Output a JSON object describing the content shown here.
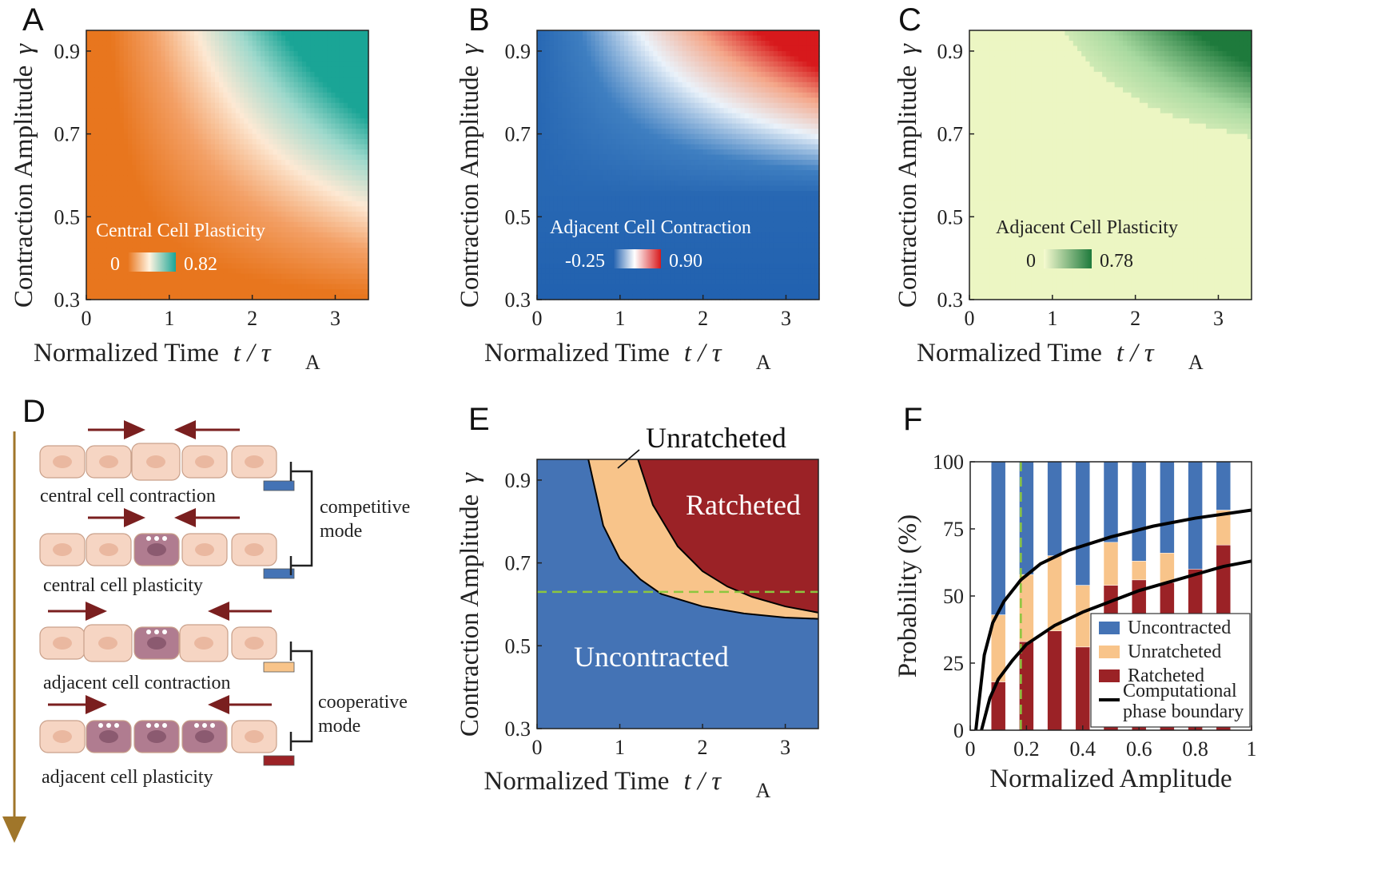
{
  "panel_labels": [
    "A",
    "B",
    "C",
    "D",
    "E",
    "F"
  ],
  "colors": {
    "uncontracted": "#4473b5",
    "unratcheted": "#f8c48a",
    "ratcheted": "#9b2226",
    "boundary": "#000000",
    "dashed_line": "#8cc63f",
    "arrow": "#7a1f1f",
    "cell_fill": "#f6d5c3",
    "cell_plastic": "#b07c90"
  },
  "shared_axes": {
    "xlabel": "Normalized Time",
    "xlabel_symbol": "t / τ",
    "xlabel_sub": "A",
    "ylabel": "Contraction Amplitude",
    "ylabel_symbol": "γ",
    "x_ticks": [
      "0",
      "1",
      "2",
      "3"
    ],
    "y_ticks": [
      "0.3",
      "0.5",
      "0.7",
      "0.9"
    ]
  },
  "panel_d": {
    "captions": [
      "central cell contraction",
      "central cell plasticity",
      "adjacent cell contraction",
      "adjacent cell plasticity"
    ],
    "mode_labels": [
      [
        "competitive",
        "mode"
      ],
      [
        "cooperative",
        "mode"
      ]
    ],
    "row_colors": [
      "#4473b5",
      "#4473b5",
      "#f8c48a",
      "#9b2226"
    ]
  },
  "chart_data": [
    {
      "panel": "A",
      "type": "heatmap",
      "title": "",
      "xlabel": "Normalized Time t / τA",
      "ylabel": "Contraction Amplitude γ",
      "xlim": [
        0,
        3.4
      ],
      "ylim": [
        0.3,
        0.95
      ],
      "inset_label": "Central Cell Plasticity",
      "colorbar": {
        "min": "0",
        "max": "0.82",
        "colors": [
          "#e8761e",
          "#fff3e0",
          "#1aa596"
        ]
      },
      "description_bands": "orange (0) at short times / low amplitude, rising through pale band to teal (0.82) at long times / high amplitude"
    },
    {
      "panel": "B",
      "type": "heatmap",
      "title": "",
      "xlabel": "Normalized Time t / τA",
      "ylabel": "Contraction Amplitude γ",
      "xlim": [
        0,
        3.4
      ],
      "ylim": [
        0.3,
        0.95
      ],
      "inset_label": "Adjacent Cell Contraction",
      "colorbar": {
        "min": "-0.25",
        "max": "0.90",
        "colors": [
          "#1f5fae",
          "#ffffff",
          "#d7191c"
        ]
      }
    },
    {
      "panel": "C",
      "type": "heatmap",
      "title": "",
      "xlabel": "Normalized Time t / τA",
      "ylabel": "Contraction Amplitude γ",
      "xlim": [
        0,
        3.4
      ],
      "ylim": [
        0.3,
        0.95
      ],
      "inset_label": "Adjacent Cell Plasticity",
      "colorbar": {
        "min": "0",
        "max": "0.78",
        "colors": [
          "#f7fbd0",
          "#1e7a3c"
        ]
      }
    },
    {
      "panel": "E",
      "type": "area",
      "title": "",
      "xlabel": "Normalized Time t / τA",
      "ylabel": "Contraction Amplitude γ",
      "xlim": [
        0,
        3.4
      ],
      "ylim": [
        0.3,
        0.95
      ],
      "regions": [
        "Uncontracted",
        "Unratcheted",
        "Ratcheted"
      ],
      "annotation": "Unratcheted",
      "dashed_y": 0.63,
      "boundary_unratcheted": {
        "x": [
          0.62,
          0.8,
          1.0,
          1.25,
          1.5,
          2.0,
          2.5,
          3.0,
          3.4
        ],
        "y": [
          0.95,
          0.79,
          0.71,
          0.66,
          0.625,
          0.595,
          0.578,
          0.568,
          0.565
        ]
      },
      "boundary_ratcheted": {
        "x": [
          1.22,
          1.4,
          1.7,
          2.0,
          2.3,
          2.6,
          3.0,
          3.4
        ],
        "y": [
          0.95,
          0.84,
          0.74,
          0.68,
          0.643,
          0.618,
          0.595,
          0.58
        ]
      }
    },
    {
      "panel": "F",
      "type": "bar",
      "title": "",
      "xlabel": "Normalized Amplitude",
      "ylabel": "Probability (%)",
      "x_ticks": [
        "0",
        "0.2",
        "0.4",
        "0.6",
        "0.8",
        "1"
      ],
      "y_ticks": [
        "0",
        "25",
        "50",
        "75",
        "100"
      ],
      "xlim": [
        0,
        1
      ],
      "ylim": [
        0,
        100
      ],
      "dashed_x": 0.18,
      "x": [
        0.1,
        0.2,
        0.3,
        0.4,
        0.5,
        0.6,
        0.7,
        0.8,
        0.9
      ],
      "series": [
        {
          "name": "Uncontracted",
          "values": [
            57,
            42,
            35,
            46,
            30,
            37,
            34,
            40,
            18
          ]
        },
        {
          "name": "Unratcheted",
          "values": [
            25,
            25,
            28,
            23,
            16,
            7,
            11,
            0,
            13
          ]
        },
        {
          "name": "Ratcheted",
          "values": [
            18,
            33,
            37,
            31,
            54,
            56,
            55,
            60,
            69
          ]
        }
      ],
      "boundary_curves": [
        {
          "x": [
            0.02,
            0.05,
            0.08,
            0.12,
            0.18,
            0.25,
            0.35,
            0.5,
            0.65,
            0.8,
            1.0
          ],
          "y": [
            0,
            28,
            40,
            48,
            56,
            62,
            67,
            72,
            76,
            79,
            82
          ]
        },
        {
          "x": [
            0.04,
            0.07,
            0.1,
            0.15,
            0.2,
            0.3,
            0.4,
            0.5,
            0.6,
            0.7,
            0.8,
            0.9,
            1.0
          ],
          "y": [
            0,
            12,
            19,
            26,
            32,
            39,
            44,
            48,
            52,
            55,
            58,
            61,
            63
          ]
        }
      ],
      "legend": [
        "Uncontracted",
        "Unratcheted",
        "Ratcheted",
        "Computational",
        "phase boundary"
      ],
      "legend_position": "bottom-right"
    }
  ]
}
